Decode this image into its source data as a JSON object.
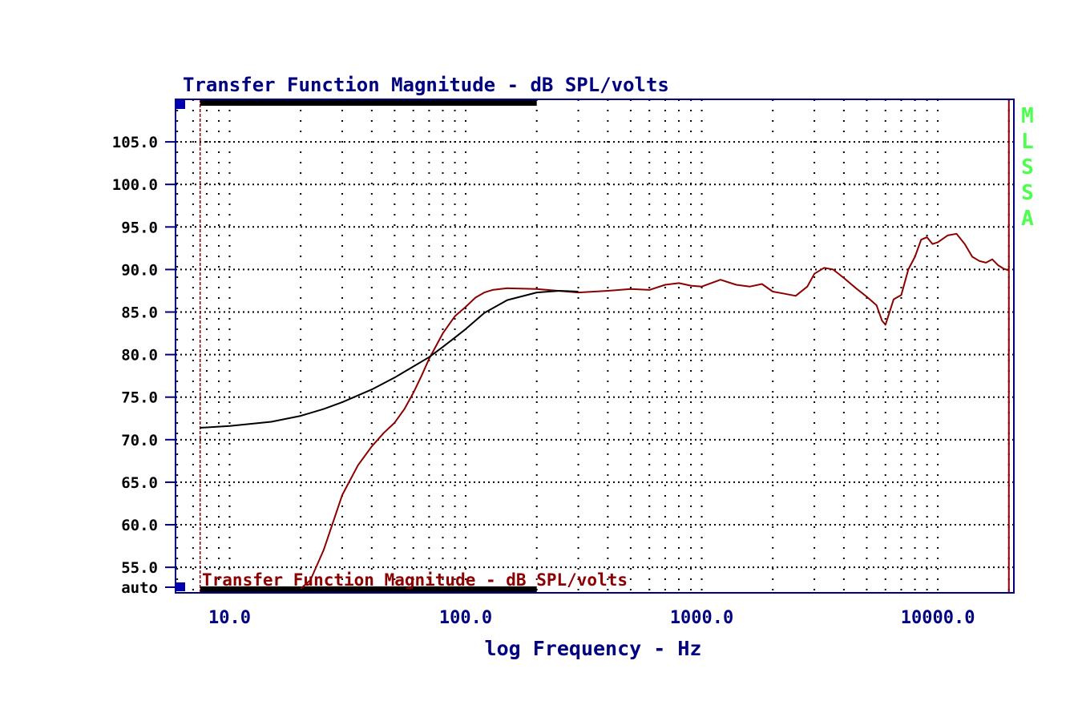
{
  "colors": {
    "axis": "#000080",
    "grid": "#000000",
    "measured": "#8b0000",
    "reference": "#000000",
    "watermark": "#4cff4c",
    "cursor_band": "#000000",
    "corner_marker": "#0000b0"
  },
  "chart_data": {
    "type": "line",
    "title": "Transfer Function Magnitude - dB SPL/volts",
    "bottom_label": "Transfer Function Magnitude - dB SPL/volts",
    "xlabel": "log Frequency - Hz",
    "ylabel": "",
    "x_scale": "log",
    "xlim": [
      5.9,
      21000
    ],
    "ylim": [
      52.0,
      110.0
    ],
    "x_ticks": [
      {
        "value": 10,
        "label": "10.0"
      },
      {
        "value": 100,
        "label": "100.0"
      },
      {
        "value": 1000,
        "label": "1000.0"
      },
      {
        "value": 10000,
        "label": "10000.0"
      }
    ],
    "y_ticks": [
      {
        "value": 105,
        "label": "105.0"
      },
      {
        "value": 100,
        "label": "100.0"
      },
      {
        "value": 95,
        "label": "95.0"
      },
      {
        "value": 90,
        "label": "90.0"
      },
      {
        "value": 85,
        "label": "85.0"
      },
      {
        "value": 80,
        "label": "80.0"
      },
      {
        "value": 75,
        "label": "75.0"
      },
      {
        "value": 70,
        "label": "70.0"
      },
      {
        "value": 65,
        "label": "65.0"
      },
      {
        "value": 60,
        "label": "60.0"
      },
      {
        "value": 55,
        "label": "55.0"
      },
      {
        "value": 52,
        "label": "auto"
      }
    ],
    "grid": true,
    "legend": "none",
    "watermark": "MLSSA",
    "cursors": [
      7.5,
      20000
    ],
    "band": [
      7.5,
      200
    ],
    "series": [
      {
        "color": "#8b0000",
        "x": [
          20,
          22,
          25,
          30,
          35,
          40,
          45,
          50,
          55,
          60,
          65,
          70,
          80,
          90,
          100,
          110,
          120,
          130,
          150,
          200,
          300,
          400,
          500,
          600,
          700,
          800,
          900,
          1000,
          1200,
          1400,
          1600,
          1800,
          2000,
          2200,
          2500,
          2800,
          3000,
          3300,
          3600,
          4000,
          4500,
          5000,
          5500,
          5800,
          6000,
          6500,
          7000,
          7500,
          8000,
          8500,
          9000,
          9500,
          10000,
          11000,
          12000,
          13000,
          14000,
          15000,
          16000,
          17000,
          18000,
          19000,
          20000
        ],
        "y": [
          52.5,
          53.5,
          57.0,
          63.5,
          67.0,
          69.2,
          70.8,
          72.0,
          73.6,
          75.5,
          77.5,
          79.5,
          82.5,
          84.5,
          85.6,
          86.7,
          87.3,
          87.6,
          87.8,
          87.7,
          87.3,
          87.5,
          87.7,
          87.6,
          88.2,
          88.4,
          88.1,
          88.0,
          88.8,
          88.2,
          88.0,
          88.3,
          87.4,
          87.2,
          86.9,
          88.0,
          89.5,
          90.2,
          90.0,
          89.0,
          87.8,
          86.8,
          85.8,
          84.0,
          83.5,
          86.5,
          87.0,
          90.0,
          91.5,
          93.5,
          93.8,
          93.0,
          93.2,
          94.0,
          94.2,
          93.0,
          91.5,
          91.0,
          90.8,
          91.2,
          90.5,
          90.1,
          89.9
        ]
      },
      {
        "color": "#000000",
        "x": [
          7.5,
          10,
          15,
          20,
          25,
          30,
          40,
          50,
          60,
          70,
          80,
          90,
          100,
          120,
          150,
          200,
          250,
          300
        ],
        "y": [
          71.4,
          71.6,
          72.1,
          72.8,
          73.6,
          74.4,
          75.9,
          77.3,
          78.6,
          79.7,
          80.9,
          82.0,
          83.0,
          84.9,
          86.4,
          87.3,
          87.5,
          87.4
        ]
      }
    ]
  }
}
